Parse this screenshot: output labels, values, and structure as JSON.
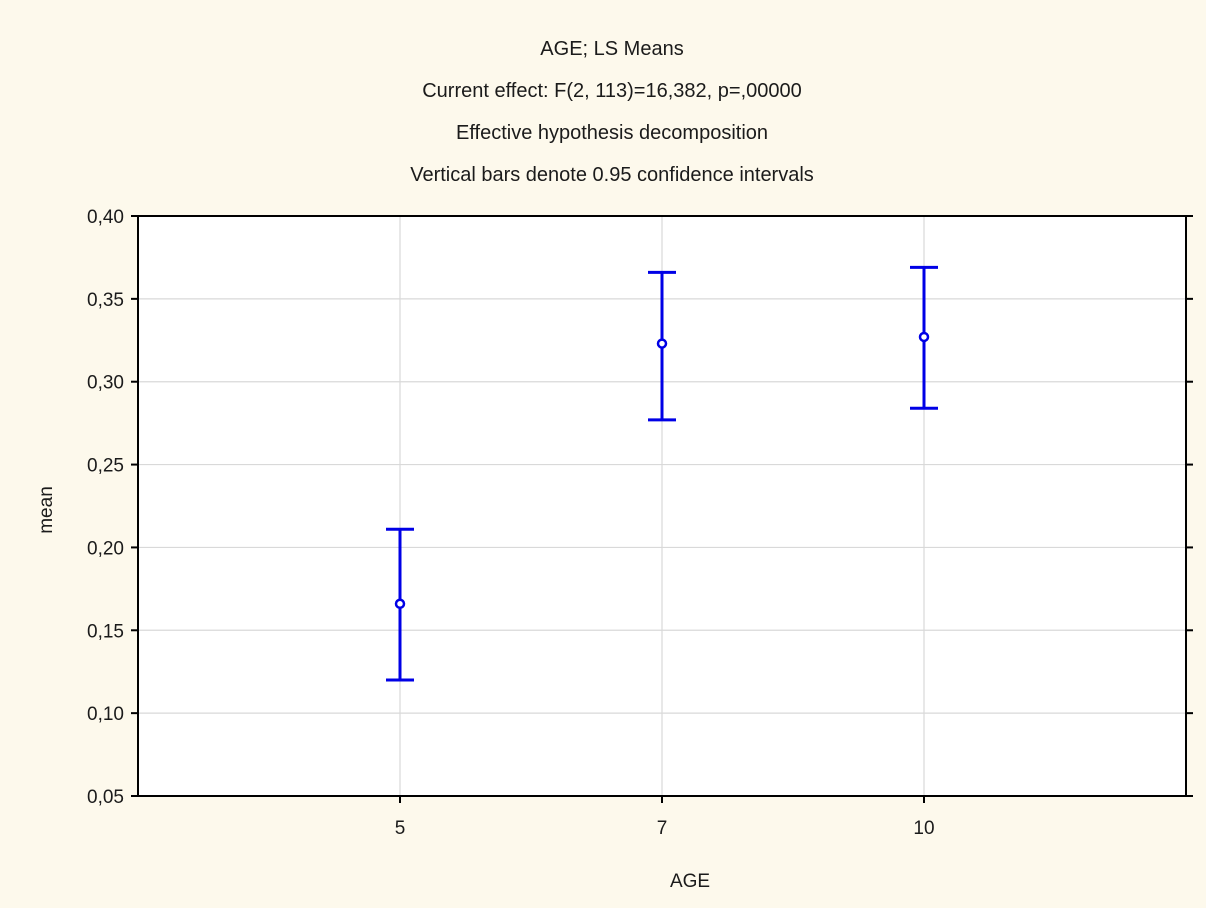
{
  "chart_data": {
    "type": "scatter",
    "title_lines": [
      "AGE; LS Means",
      "Current effect:  F(2, 113)=16,382, p=,00000",
      "Effective hypothesis decomposition",
      "Vertical bars denote 0.95 confidence intervals"
    ],
    "xlabel": "AGE",
    "ylabel": "mean",
    "categories": [
      "5",
      "7",
      "10"
    ],
    "means": [
      0.166,
      0.323,
      0.327
    ],
    "ci_lower": [
      0.12,
      0.277,
      0.284
    ],
    "ci_upper": [
      0.211,
      0.366,
      0.369
    ],
    "ylim": [
      0.05,
      0.4
    ],
    "yticks": [
      0.05,
      0.1,
      0.15,
      0.2,
      0.25,
      0.3,
      0.35,
      0.4
    ],
    "ytick_labels": [
      "0,05",
      "0,10",
      "0,15",
      "0,20",
      "0,25",
      "0,30",
      "0,35",
      "0,40"
    ],
    "grid": true,
    "colors": {
      "series": "#0000e6",
      "grid": "#d9d9d9",
      "axis": "#000000",
      "background": "#fdf9ec",
      "plot_background": "#ffffff"
    }
  }
}
